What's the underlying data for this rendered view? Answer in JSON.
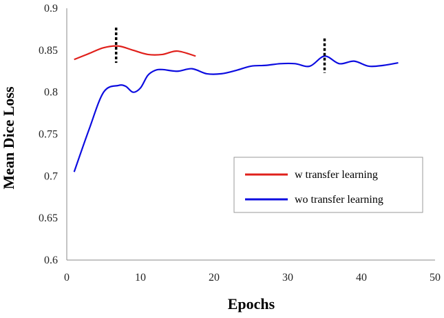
{
  "chart_data": {
    "type": "line",
    "xlabel": "Epochs",
    "ylabel": "Mean Dice Loss",
    "xlim": [
      0,
      50
    ],
    "ylim": [
      0.6,
      0.9
    ],
    "x_ticks": [
      "0",
      "10",
      "20",
      "30",
      "40",
      "50"
    ],
    "y_ticks": [
      "0.6",
      "0.65",
      "0.7",
      "0.75",
      "0.8",
      "0.85",
      "0.9"
    ],
    "grid": false,
    "legend_position": "lower-right",
    "series": [
      {
        "name": "w transfer learning",
        "color": "#e0201b",
        "x": [
          1,
          3,
          5,
          7,
          9,
          11,
          13,
          15,
          17.5
        ],
        "y": [
          0.839,
          0.846,
          0.853,
          0.855,
          0.85,
          0.845,
          0.845,
          0.849,
          0.843
        ]
      },
      {
        "name": "wo transfer learning",
        "color": "#0c0ce0",
        "x": [
          1,
          3,
          5,
          7,
          8,
          9,
          10,
          11,
          12,
          13,
          15,
          17,
          19,
          21,
          23,
          25,
          27,
          29,
          31,
          33,
          35,
          37,
          39,
          41,
          43,
          45
        ],
        "y": [
          0.705,
          0.755,
          0.8,
          0.808,
          0.807,
          0.8,
          0.805,
          0.82,
          0.826,
          0.827,
          0.825,
          0.828,
          0.822,
          0.822,
          0.826,
          0.831,
          0.832,
          0.834,
          0.834,
          0.831,
          0.843,
          0.834,
          0.837,
          0.831,
          0.832,
          0.835
        ]
      }
    ],
    "markers": [
      {
        "x": 6.7,
        "y_range": [
          0.835,
          0.877
        ]
      },
      {
        "x": 35,
        "y_range": [
          0.823,
          0.864
        ]
      }
    ]
  }
}
